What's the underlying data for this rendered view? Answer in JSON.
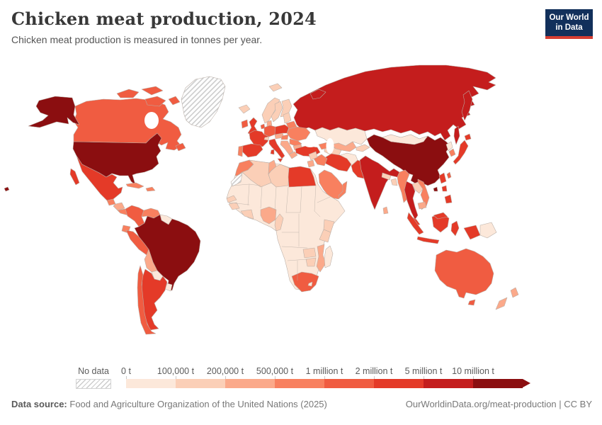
{
  "header": {
    "title": "Chicken meat production, 2024",
    "subtitle": "Chicken meat production is measured in tonnes per year."
  },
  "logo": {
    "line1": "Our World",
    "line2": "in Data",
    "bg_color": "#12305b",
    "bar_color": "#d63e32"
  },
  "legend": {
    "no_data_label": "No data",
    "tick_labels": [
      "0 t",
      "100,000 t",
      "200,000 t",
      "500,000 t",
      "1 million t",
      "2 million t",
      "5 million t",
      "10 million t"
    ],
    "palette": [
      "#fce8da",
      "#fbcfb7",
      "#fba98a",
      "#f8805f",
      "#f05c41",
      "#e43a28",
      "#c41d1d",
      "#8b0e10"
    ]
  },
  "footer": {
    "source_label": "Data source:",
    "source_text": "Food and Agriculture Organization of the United Nations (2025)",
    "credit": "OurWorldinData.org/meat-production | CC BY"
  },
  "map": {
    "border_color": "#b9aea6",
    "no_data_hatch_color": "#cccccc",
    "countries": [
      {
        "id": "usa",
        "name": "United States",
        "bin": 8
      },
      {
        "id": "canada",
        "name": "Canada",
        "bin": 5
      },
      {
        "id": "greenland",
        "name": "Greenland",
        "bin": "no-data"
      },
      {
        "id": "mexico",
        "name": "Mexico",
        "bin": 6
      },
      {
        "id": "guatemala",
        "name": "Guatemala",
        "bin": 4
      },
      {
        "id": "honduras-nicaragua",
        "name": "Honduras/Nicaragua",
        "bin": 3
      },
      {
        "id": "costa-rica-panama",
        "name": "Costa Rica/Panama",
        "bin": 4
      },
      {
        "id": "cuba",
        "name": "Cuba",
        "bin": 4
      },
      {
        "id": "hispaniola",
        "name": "Dominican Republic/Haiti",
        "bin": 4
      },
      {
        "id": "colombia",
        "name": "Colombia",
        "bin": 5
      },
      {
        "id": "venezuela",
        "name": "Venezuela",
        "bin": 4
      },
      {
        "id": "guyanas",
        "name": "Guyana/Suriname",
        "bin": 1
      },
      {
        "id": "ecuador",
        "name": "Ecuador",
        "bin": 4
      },
      {
        "id": "peru",
        "name": "Peru",
        "bin": 5
      },
      {
        "id": "brazil",
        "name": "Brazil",
        "bin": 8
      },
      {
        "id": "bolivia",
        "name": "Bolivia",
        "bin": 3
      },
      {
        "id": "paraguay",
        "name": "Paraguay",
        "bin": 1
      },
      {
        "id": "uruguay",
        "name": "Uruguay",
        "bin": 1
      },
      {
        "id": "argentina",
        "name": "Argentina",
        "bin": 6
      },
      {
        "id": "chile",
        "name": "Chile",
        "bin": 5
      },
      {
        "id": "iceland",
        "name": "Iceland",
        "bin": 2
      },
      {
        "id": "ireland",
        "name": "Ireland",
        "bin": 5
      },
      {
        "id": "uk",
        "name": "United Kingdom",
        "bin": 6
      },
      {
        "id": "norway",
        "name": "Norway",
        "bin": 2
      },
      {
        "id": "sweden",
        "name": "Sweden",
        "bin": 2
      },
      {
        "id": "finland",
        "name": "Finland",
        "bin": 2
      },
      {
        "id": "denmark",
        "name": "Denmark",
        "bin": 3
      },
      {
        "id": "netherlands",
        "name": "Netherlands/Belgium",
        "bin": 5
      },
      {
        "id": "germany",
        "name": "Germany",
        "bin": 5
      },
      {
        "id": "france",
        "name": "France",
        "bin": 6
      },
      {
        "id": "spain",
        "name": "Spain",
        "bin": 6
      },
      {
        "id": "portugal",
        "name": "Portugal",
        "bin": 4
      },
      {
        "id": "italy",
        "name": "Italy",
        "bin": 6
      },
      {
        "id": "switzerland",
        "name": "Switzerland",
        "bin": 2
      },
      {
        "id": "czech-austria",
        "name": "Czechia/Austria",
        "bin": 3
      },
      {
        "id": "poland",
        "name": "Poland",
        "bin": 6
      },
      {
        "id": "baltics",
        "name": "Baltic states",
        "bin": 2
      },
      {
        "id": "belarus",
        "name": "Belarus",
        "bin": 4
      },
      {
        "id": "ukraine",
        "name": "Ukraine",
        "bin": 4
      },
      {
        "id": "hungary",
        "name": "Hungary",
        "bin": 4
      },
      {
        "id": "romania",
        "name": "Romania",
        "bin": 4
      },
      {
        "id": "balkans",
        "name": "Western Balkans",
        "bin": 3
      },
      {
        "id": "bulgaria",
        "name": "Bulgaria",
        "bin": 3
      },
      {
        "id": "greece",
        "name": "Greece",
        "bin": 3
      },
      {
        "id": "turkey",
        "name": "Turkey",
        "bin": 6
      },
      {
        "id": "russia",
        "name": "Russia",
        "bin": 7
      },
      {
        "id": "kazakhstan",
        "name": "Kazakhstan",
        "bin": 1
      },
      {
        "id": "uzbekistan",
        "name": "Uzbekistan",
        "bin": 3
      },
      {
        "id": "turkmenistan",
        "name": "Turkmenistan",
        "bin": 2
      },
      {
        "id": "kyrgyzstan-tajikistan",
        "name": "Kyrgyzstan/Tajikistan",
        "bin": 2
      },
      {
        "id": "caucasus",
        "name": "Caucasus states",
        "bin": 4
      },
      {
        "id": "afghanistan",
        "name": "Afghanistan",
        "bin": 1
      },
      {
        "id": "iran",
        "name": "Iran",
        "bin": 6
      },
      {
        "id": "iraq",
        "name": "Iraq",
        "bin": 4
      },
      {
        "id": "syria",
        "name": "Syria",
        "bin": 2
      },
      {
        "id": "jordan-israel",
        "name": "Jordan/Israel",
        "bin": 3
      },
      {
        "id": "saudi-arabia",
        "name": "Saudi Arabia",
        "bin": 4
      },
      {
        "id": "yemen",
        "name": "Yemen",
        "bin": 3
      },
      {
        "id": "oman",
        "name": "Oman",
        "bin": 4
      },
      {
        "id": "pakistan",
        "name": "Pakistan",
        "bin": 6
      },
      {
        "id": "india",
        "name": "India",
        "bin": 7
      },
      {
        "id": "nepal",
        "name": "Nepal",
        "bin": 2
      },
      {
        "id": "bangladesh",
        "name": "Bangladesh",
        "bin": 2
      },
      {
        "id": "sri-lanka",
        "name": "Sri Lanka",
        "bin": 3
      },
      {
        "id": "myanmar",
        "name": "Myanmar",
        "bin": 4
      },
      {
        "id": "thailand",
        "name": "Thailand",
        "bin": 7
      },
      {
        "id": "laos",
        "name": "Laos",
        "bin": 2
      },
      {
        "id": "vietnam",
        "name": "Vietnam",
        "bin": 4
      },
      {
        "id": "cambodia",
        "name": "Cambodia",
        "bin": 3
      },
      {
        "id": "malaysia",
        "name": "Malaysia",
        "bin": 6
      },
      {
        "id": "indonesia",
        "name": "Indonesia",
        "bin": 6
      },
      {
        "id": "philippines",
        "name": "Philippines",
        "bin": 6
      },
      {
        "id": "china",
        "name": "China",
        "bin": 8
      },
      {
        "id": "mongolia",
        "name": "Mongolia",
        "bin": 1
      },
      {
        "id": "north-korea",
        "name": "North Korea",
        "bin": 1
      },
      {
        "id": "south-korea",
        "name": "South Korea",
        "bin": 4
      },
      {
        "id": "japan",
        "name": "Japan",
        "bin": 6
      },
      {
        "id": "taiwan",
        "name": "Taiwan",
        "bin": 5
      },
      {
        "id": "png",
        "name": "Papua New Guinea",
        "bin": 1
      },
      {
        "id": "australia",
        "name": "Australia",
        "bin": 5
      },
      {
        "id": "new-zealand",
        "name": "New Zealand",
        "bin": 3
      },
      {
        "id": "africa-other",
        "name": "Other African countries",
        "bin": 1
      },
      {
        "id": "morocco",
        "name": "Morocco",
        "bin": 4
      },
      {
        "id": "western-sahara",
        "name": "Western Sahara",
        "bin": "no-data"
      },
      {
        "id": "algeria",
        "name": "Algeria",
        "bin": 2
      },
      {
        "id": "tunisia",
        "name": "Tunisia",
        "bin": 3
      },
      {
        "id": "libya",
        "name": "Libya",
        "bin": 2
      },
      {
        "id": "egypt",
        "name": "Egypt",
        "bin": 6
      },
      {
        "id": "senegal",
        "name": "Senegal",
        "bin": 2
      },
      {
        "id": "guinea",
        "name": "Guinea",
        "bin": 2
      },
      {
        "id": "ivory-ghana",
        "name": "Ivory Coast/Ghana",
        "bin": 2
      },
      {
        "id": "nigeria",
        "name": "Nigeria",
        "bin": 3
      },
      {
        "id": "cameroon",
        "name": "Cameroon",
        "bin": 2
      },
      {
        "id": "kenya",
        "name": "Kenya",
        "bin": 2
      },
      {
        "id": "tanzania",
        "name": "Tanzania",
        "bin": 2
      },
      {
        "id": "zambia",
        "name": "Zambia",
        "bin": 2
      },
      {
        "id": "zimbabwe",
        "name": "Zimbabwe",
        "bin": 2
      },
      {
        "id": "mozambique",
        "name": "Mozambique",
        "bin": 3
      },
      {
        "id": "south-africa",
        "name": "South Africa",
        "bin": 5
      },
      {
        "id": "lesotho",
        "name": "Lesotho",
        "bin": 1
      },
      {
        "id": "madagascar",
        "name": "Madagascar",
        "bin": 1
      }
    ]
  },
  "chart_data": {
    "type": "choropleth",
    "title": "Chicken meat production, 2024",
    "subtitle": "Chicken meat production is measured in tonnes per year.",
    "unit": "tonnes per year",
    "legend_position": "bottom",
    "bin_edge_labels": [
      "0 t",
      "100,000 t",
      "200,000 t",
      "500,000 t",
      "1 million t",
      "2 million t",
      "5 million t",
      "10 million t"
    ],
    "bin_range_labels": [
      "0–100,000 t",
      "100,000–200,000 t",
      "200,000–500,000 t",
      "500,000 t–1 million t",
      "1–2 million t",
      "2–5 million t",
      "5–10 million t",
      "> 10 million t"
    ],
    "countries_by_bin": {
      "8": [
        "United States",
        "Brazil",
        "China"
      ],
      "7": [
        "Russia",
        "India",
        "Thailand"
      ],
      "6": [
        "Mexico",
        "Argentina",
        "United Kingdom",
        "France",
        "Spain",
        "Italy",
        "Poland",
        "Turkey",
        "Egypt",
        "Iran",
        "Pakistan",
        "Japan",
        "Malaysia",
        "Indonesia",
        "Philippines"
      ],
      "5": [
        "Canada",
        "Colombia",
        "Peru",
        "Chile",
        "Ireland",
        "Germany",
        "Netherlands/Belgium",
        "South Africa",
        "Taiwan",
        "Australia"
      ],
      "4": [
        "Guatemala",
        "Costa Rica/Panama",
        "Cuba",
        "Dominican Republic/Haiti",
        "Venezuela",
        "Ecuador",
        "Portugal",
        "Belarus",
        "Ukraine",
        "Hungary",
        "Romania",
        "Caucasus states",
        "Iraq",
        "Saudi Arabia",
        "Oman",
        "Morocco",
        "Myanmar",
        "Vietnam",
        "South Korea"
      ],
      "3": [
        "Honduras/Nicaragua",
        "Bolivia",
        "Denmark",
        "Czechia/Austria",
        "Western Balkans",
        "Bulgaria",
        "Greece",
        "Uzbekistan",
        "Jordan/Israel",
        "Yemen",
        "Sri Lanka",
        "Cambodia",
        "Nigeria",
        "Tunisia",
        "Mozambique",
        "New Zealand"
      ],
      "2": [
        "Iceland",
        "Norway",
        "Sweden",
        "Finland",
        "Switzerland",
        "Baltic states",
        "Syria",
        "Turkmenistan",
        "Kyrgyzstan/Tajikistan",
        "Nepal",
        "Bangladesh",
        "Laos",
        "Algeria",
        "Libya",
        "Senegal",
        "Guinea",
        "Ivory Coast/Ghana",
        "Cameroon",
        "Kenya",
        "Tanzania",
        "Zambia",
        "Zimbabwe"
      ],
      "1": [
        "Guyana/Suriname",
        "Paraguay",
        "Uruguay",
        "Kazakhstan",
        "Mongolia",
        "Afghanistan",
        "North Korea",
        "Papua New Guinea",
        "Other African countries",
        "Lesotho",
        "Madagascar"
      ],
      "no_data": [
        "Greenland",
        "Western Sahara"
      ]
    }
  }
}
